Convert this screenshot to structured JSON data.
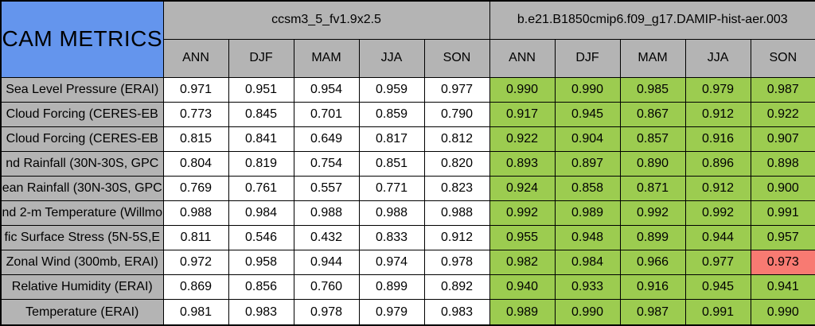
{
  "colors": {
    "header_blue": "#6495ed",
    "header_gray": "#b4b4b4",
    "cell_green": "#9ccc50",
    "cell_red": "#f87a72",
    "cell_white": "#ffffff",
    "border_black": "#000000"
  },
  "table": {
    "corner_title": "CAM METRICS",
    "model_groups": [
      {
        "name": "ccsm3_5_fv1.9x2.5"
      },
      {
        "name": "b.e21.B1850cmip6.f09_g17.DAMIP-hist-aer.003"
      }
    ],
    "season_columns": [
      "ANN",
      "DJF",
      "MAM",
      "JJA",
      "SON"
    ],
    "rows": [
      {
        "label": "Sea Level Pressure (ERAI)",
        "model1": [
          "0.971",
          "0.951",
          "0.954",
          "0.959",
          "0.977"
        ],
        "model2": [
          "0.990",
          "0.990",
          "0.985",
          "0.979",
          "0.987"
        ]
      },
      {
        "label": "Cloud Forcing (CERES-EB",
        "model1": [
          "0.773",
          "0.845",
          "0.701",
          "0.859",
          "0.790"
        ],
        "model2": [
          "0.917",
          "0.945",
          "0.867",
          "0.912",
          "0.922"
        ]
      },
      {
        "label": "Cloud Forcing (CERES-EB",
        "model1": [
          "0.815",
          "0.841",
          "0.649",
          "0.817",
          "0.812"
        ],
        "model2": [
          "0.922",
          "0.904",
          "0.857",
          "0.916",
          "0.907"
        ]
      },
      {
        "label": "nd Rainfall (30N-30S, GPC",
        "model1": [
          "0.804",
          "0.819",
          "0.754",
          "0.851",
          "0.820"
        ],
        "model2": [
          "0.893",
          "0.897",
          "0.890",
          "0.896",
          "0.898"
        ]
      },
      {
        "label": "ean Rainfall (30N-30S, GPC",
        "model1": [
          "0.769",
          "0.761",
          "0.557",
          "0.771",
          "0.823"
        ],
        "model2": [
          "0.924",
          "0.858",
          "0.871",
          "0.912",
          "0.900"
        ]
      },
      {
        "label": "nd 2-m Temperature (Willmo",
        "model1": [
          "0.988",
          "0.984",
          "0.988",
          "0.988",
          "0.988"
        ],
        "model2": [
          "0.992",
          "0.989",
          "0.992",
          "0.992",
          "0.991"
        ]
      },
      {
        "label": "fic Surface Stress (5N-5S,E",
        "model1": [
          "0.811",
          "0.546",
          "0.432",
          "0.833",
          "0.912"
        ],
        "model2": [
          "0.955",
          "0.948",
          "0.899",
          "0.944",
          "0.957"
        ]
      },
      {
        "label": "Zonal Wind (300mb, ERAI)",
        "model1": [
          "0.972",
          "0.958",
          "0.944",
          "0.974",
          "0.978"
        ],
        "model2": [
          "0.982",
          "0.984",
          "0.966",
          "0.977",
          "0.973"
        ]
      },
      {
        "label": "Relative Humidity (ERAI)",
        "model1": [
          "0.869",
          "0.856",
          "0.760",
          "0.899",
          "0.892"
        ],
        "model2": [
          "0.940",
          "0.933",
          "0.916",
          "0.945",
          "0.941"
        ]
      },
      {
        "label": "Temperature (ERAI)",
        "model1": [
          "0.981",
          "0.983",
          "0.978",
          "0.979",
          "0.983"
        ],
        "model2": [
          "0.989",
          "0.990",
          "0.987",
          "0.991",
          "0.990"
        ]
      }
    ],
    "flagged_cells": [
      {
        "row_index": 7,
        "group": 2,
        "season_index": 4,
        "color_name": "red"
      }
    ]
  },
  "chart_data": {
    "type": "table",
    "title": "CAM METRICS",
    "column_groups": [
      "ccsm3_5_fv1.9x2.5",
      "b.e21.B1850cmip6.f09_g17.DAMIP-hist-aer.003"
    ],
    "columns": [
      "ANN",
      "DJF",
      "MAM",
      "JJA",
      "SON",
      "ANN",
      "DJF",
      "MAM",
      "JJA",
      "SON"
    ],
    "row_labels": [
      "Sea Level Pressure (ERAI)",
      "Cloud Forcing (CERES-EB",
      "Cloud Forcing (CERES-EB",
      "nd Rainfall (30N-30S, GPC",
      "ean Rainfall (30N-30S, GPC",
      "nd 2-m Temperature (Willmo",
      "fic Surface Stress (5N-5S,E",
      "Zonal Wind (300mb, ERAI)",
      "Relative Humidity (ERAI)",
      "Temperature (ERAI)"
    ],
    "values": [
      [
        0.971,
        0.951,
        0.954,
        0.959,
        0.977,
        0.99,
        0.99,
        0.985,
        0.979,
        0.987
      ],
      [
        0.773,
        0.845,
        0.701,
        0.859,
        0.79,
        0.917,
        0.945,
        0.867,
        0.912,
        0.922
      ],
      [
        0.815,
        0.841,
        0.649,
        0.817,
        0.812,
        0.922,
        0.904,
        0.857,
        0.916,
        0.907
      ],
      [
        0.804,
        0.819,
        0.754,
        0.851,
        0.82,
        0.893,
        0.897,
        0.89,
        0.896,
        0.898
      ],
      [
        0.769,
        0.761,
        0.557,
        0.771,
        0.823,
        0.924,
        0.858,
        0.871,
        0.912,
        0.9
      ],
      [
        0.988,
        0.984,
        0.988,
        0.988,
        0.988,
        0.992,
        0.989,
        0.992,
        0.992,
        0.991
      ],
      [
        0.811,
        0.546,
        0.432,
        0.833,
        0.912,
        0.955,
        0.948,
        0.899,
        0.944,
        0.957
      ],
      [
        0.972,
        0.958,
        0.944,
        0.974,
        0.978,
        0.982,
        0.984,
        0.966,
        0.977,
        0.973
      ],
      [
        0.869,
        0.856,
        0.76,
        0.899,
        0.892,
        0.94,
        0.933,
        0.916,
        0.945,
        0.941
      ],
      [
        0.981,
        0.983,
        0.978,
        0.979,
        0.983,
        0.989,
        0.99,
        0.987,
        0.991,
        0.99
      ]
    ],
    "cell_highlights": [
      {
        "row": 7,
        "col": 9,
        "color": "red",
        "note": "only non-green cell in second model group"
      }
    ]
  }
}
